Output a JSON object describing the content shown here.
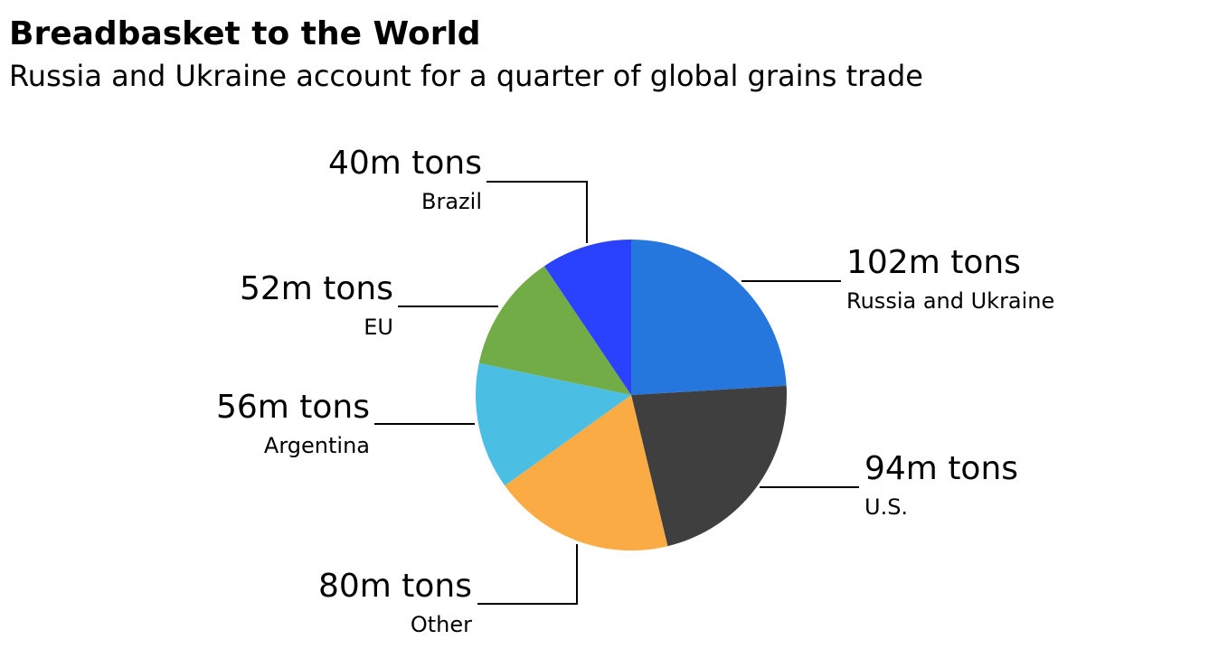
{
  "title": "Breadbasket to the World",
  "subtitle": "Russia and Ukraine account for a quarter of global grains trade",
  "chart_data": {
    "type": "pie",
    "title": "Breadbasket to the World",
    "subtitle": "Russia and Ukraine account for a quarter of global grains trade",
    "unit": "m tons",
    "slices": [
      {
        "name": "Russia and Ukraine",
        "value": 102,
        "label": "102m tons",
        "color": "#2577dd"
      },
      {
        "name": "U.S.",
        "value": 94,
        "label": "94m tons",
        "color": "#3f3f3f"
      },
      {
        "name": "Other",
        "value": 80,
        "label": "80m tons",
        "color": "#fbab44"
      },
      {
        "name": "Argentina",
        "value": 56,
        "label": "56m tons",
        "color": "#4bbee3"
      },
      {
        "name": "EU",
        "value": 52,
        "label": "52m tons",
        "color": "#72ac47"
      },
      {
        "name": "Brazil",
        "value": 40,
        "label": "40m tons",
        "color": "#2a41fd"
      }
    ],
    "start": "12 o'clock",
    "direction": "clockwise",
    "legend": "none"
  }
}
